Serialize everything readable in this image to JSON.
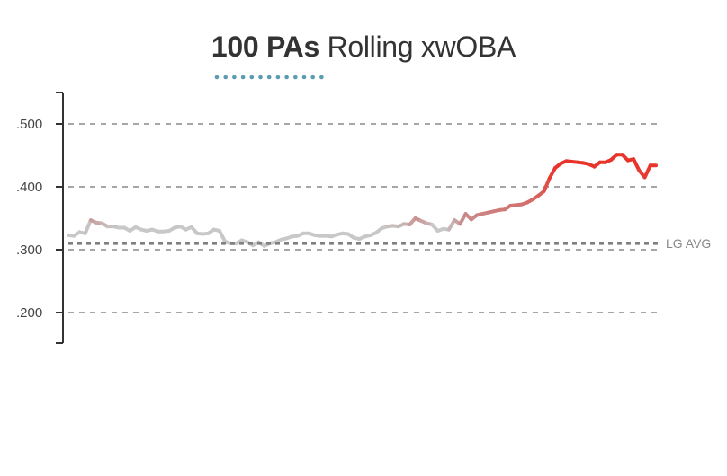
{
  "title": {
    "bold": "100 PAs",
    "regular": "Rolling xwOBA"
  },
  "colors": {
    "low": "#c8c8c8",
    "mid": "#c98a8a",
    "high": "#e8352b",
    "grid": "#888888",
    "dots": "#5b9cb0"
  },
  "chart_data": {
    "type": "line",
    "title": "100 PAs Rolling xwOBA",
    "xlabel": "",
    "ylabel": "",
    "ylim": [
      0.15,
      0.55
    ],
    "yticks": [
      {
        "value": 0.5,
        "label": ".500"
      },
      {
        "value": 0.4,
        "label": ".400"
      },
      {
        "value": 0.3,
        "label": ".300"
      },
      {
        "value": 0.2,
        "label": ".200"
      }
    ],
    "grid": true,
    "reference_line": {
      "value": 0.31,
      "label": "LG AVG"
    },
    "series": [
      {
        "values": [
          0.323,
          0.322,
          0.328,
          0.326,
          0.347,
          0.343,
          0.342,
          0.337,
          0.337,
          0.335,
          0.335,
          0.33,
          0.336,
          0.332,
          0.33,
          0.332,
          0.329,
          0.329,
          0.33,
          0.335,
          0.337,
          0.332,
          0.336,
          0.326,
          0.325,
          0.326,
          0.332,
          0.33,
          0.313,
          0.31,
          0.31,
          0.315,
          0.312,
          0.307,
          0.312,
          0.306,
          0.31,
          0.312,
          0.316,
          0.318,
          0.321,
          0.322,
          0.326,
          0.326,
          0.323,
          0.322,
          0.322,
          0.321,
          0.324,
          0.326,
          0.325,
          0.319,
          0.317,
          0.321,
          0.323,
          0.327,
          0.334,
          0.337,
          0.338,
          0.337,
          0.341,
          0.34,
          0.35,
          0.346,
          0.342,
          0.34,
          0.33,
          0.333,
          0.332,
          0.347,
          0.341,
          0.357,
          0.348,
          0.355,
          0.357,
          0.359,
          0.361,
          0.363,
          0.364,
          0.37,
          0.371,
          0.372,
          0.375,
          0.38,
          0.386,
          0.393,
          0.414,
          0.43,
          0.437,
          0.441,
          0.44,
          0.439,
          0.438,
          0.436,
          0.432,
          0.439,
          0.439,
          0.443,
          0.451,
          0.451,
          0.442,
          0.444,
          0.426,
          0.415,
          0.434,
          0.434
        ]
      }
    ]
  }
}
